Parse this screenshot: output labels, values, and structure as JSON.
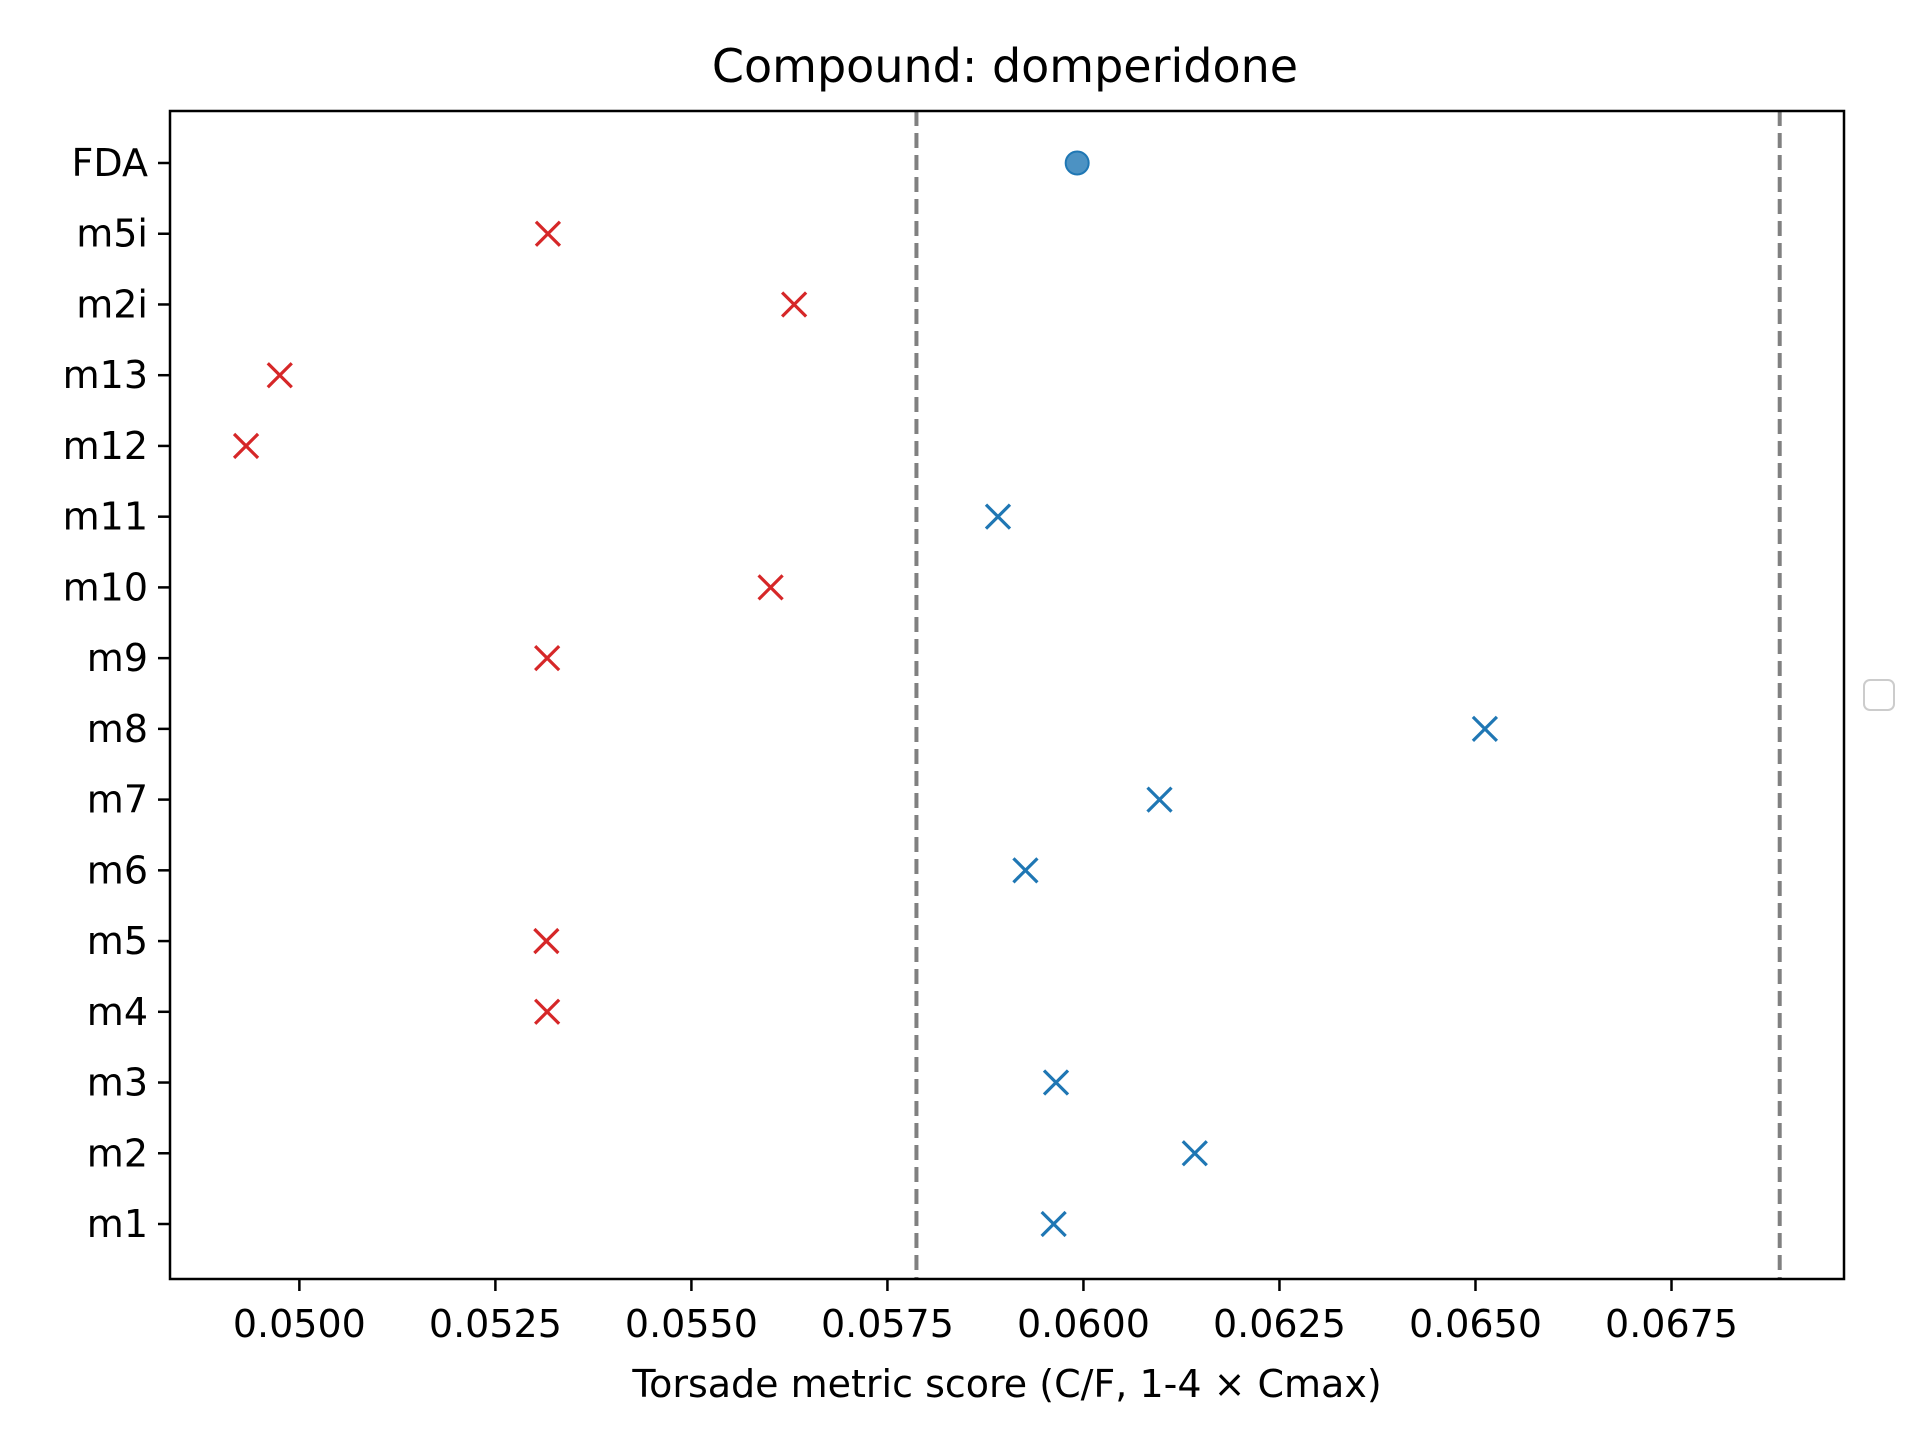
{
  "chart_data": {
    "type": "scatter",
    "title": "Compound: domperidone",
    "xlabel": "Torsade metric score (C/F, 1-4 × Cmax)",
    "ylabel": "",
    "xlim": [
      0.04835,
      0.0697
    ],
    "x_ticks": [
      0.05,
      0.0525,
      0.055,
      0.0575,
      0.06,
      0.0625,
      0.065,
      0.0675
    ],
    "x_tick_labels": [
      "0.0500",
      "0.0525",
      "0.0550",
      "0.0575",
      "0.0600",
      "0.0625",
      "0.0650",
      "0.0675"
    ],
    "categories": [
      "m1",
      "m2",
      "m3",
      "m4",
      "m5",
      "m6",
      "m7",
      "m8",
      "m9",
      "m10",
      "m11",
      "m12",
      "m13",
      "m2i",
      "m5i",
      "FDA"
    ],
    "reference_lines": [
      0.05787,
      0.06888
    ],
    "grid": false,
    "legend": "empty legend box, right side outside plot",
    "colors": {
      "red": "#d62728",
      "blue": "#1f77b4",
      "reference": "#808080"
    },
    "points": [
      {
        "category": "m1",
        "value": 0.05962,
        "marker": "x",
        "color": "blue"
      },
      {
        "category": "m2",
        "value": 0.06142,
        "marker": "x",
        "color": "blue"
      },
      {
        "category": "m3",
        "value": 0.05965,
        "marker": "x",
        "color": "blue"
      },
      {
        "category": "m4",
        "value": 0.05316,
        "marker": "x",
        "color": "red"
      },
      {
        "category": "m5",
        "value": 0.05315,
        "marker": "x",
        "color": "red"
      },
      {
        "category": "m6",
        "value": 0.05926,
        "marker": "x",
        "color": "blue"
      },
      {
        "category": "m7",
        "value": 0.06097,
        "marker": "x",
        "color": "blue"
      },
      {
        "category": "m8",
        "value": 0.06512,
        "marker": "x",
        "color": "blue"
      },
      {
        "category": "m9",
        "value": 0.05316,
        "marker": "x",
        "color": "red"
      },
      {
        "category": "m10",
        "value": 0.05601,
        "marker": "x",
        "color": "red"
      },
      {
        "category": "m11",
        "value": 0.05891,
        "marker": "x",
        "color": "blue"
      },
      {
        "category": "m12",
        "value": 0.04932,
        "marker": "x",
        "color": "red"
      },
      {
        "category": "m13",
        "value": 0.04975,
        "marker": "x",
        "color": "red"
      },
      {
        "category": "m2i",
        "value": 0.05631,
        "marker": "x",
        "color": "red"
      },
      {
        "category": "m5i",
        "value": 0.05317,
        "marker": "x",
        "color": "red"
      },
      {
        "category": "FDA",
        "value": 0.05992,
        "marker": "o",
        "color": "blue"
      }
    ]
  }
}
